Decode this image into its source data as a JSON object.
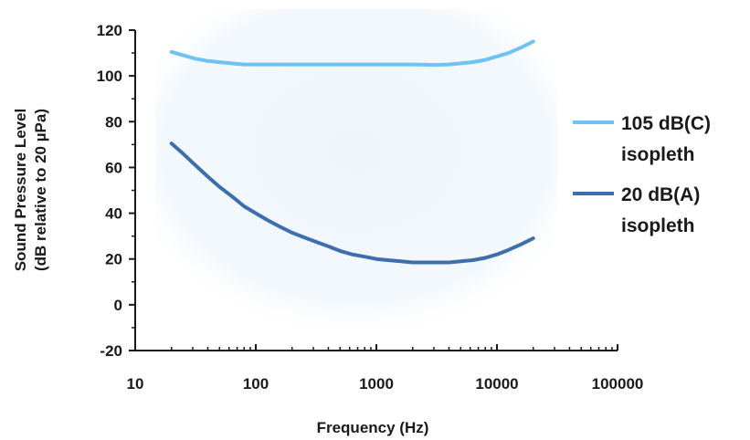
{
  "chart_data": {
    "type": "line",
    "xscale": "log",
    "xlim": [
      10,
      100000
    ],
    "ylim": [
      -20,
      120
    ],
    "xticks": [
      10,
      100,
      1000,
      10000,
      100000
    ],
    "xtick_labels": [
      "10",
      "100",
      "1000",
      "10000",
      "100000"
    ],
    "yticks": [
      -20,
      0,
      20,
      40,
      60,
      80,
      100,
      120
    ],
    "ytick_labels": [
      "-20",
      "0",
      "20",
      "40",
      "60",
      "80",
      "100",
      "120"
    ],
    "xlabel": "Frequency (Hz)",
    "ylabel_line1": "Sound Pressure Level",
    "ylabel_line2": "(dB relative to 20 µPa)",
    "grid": false,
    "legend_position": "right",
    "series": [
      {
        "name_line1": "105 dB(C)",
        "name_line2": "isopleth",
        "color": "#6ec3f4",
        "x": [
          20,
          25,
          31.5,
          40,
          50,
          63,
          80,
          100,
          200,
          500,
          1000,
          2000,
          3000,
          4000,
          5000,
          6300,
          8000,
          10000,
          12500,
          16000,
          20000
        ],
        "y": [
          110.5,
          109,
          107.5,
          106.5,
          106,
          105.5,
          105,
          105,
          105,
          105,
          105,
          105,
          104.8,
          105,
          105.5,
          106,
          107,
          108.5,
          110,
          112.5,
          115
        ]
      },
      {
        "name_line1": "20 dB(A)",
        "name_line2": "isopleth",
        "color": "#3d6fae",
        "x": [
          20,
          25,
          31.5,
          40,
          50,
          63,
          80,
          100,
          125,
          160,
          200,
          250,
          315,
          400,
          500,
          630,
          800,
          1000,
          1250,
          1600,
          2000,
          2500,
          3150,
          4000,
          5000,
          6300,
          8000,
          10000,
          12500,
          16000,
          20000
        ],
        "y": [
          70.5,
          66,
          61,
          56,
          51.5,
          47.5,
          43,
          40,
          37,
          34,
          31.5,
          29.5,
          27.5,
          25.5,
          23.5,
          22,
          21,
          20,
          19.5,
          19,
          18.5,
          18.5,
          18.5,
          18.5,
          19,
          19.5,
          20.5,
          22,
          24,
          26.5,
          29
        ]
      }
    ]
  }
}
